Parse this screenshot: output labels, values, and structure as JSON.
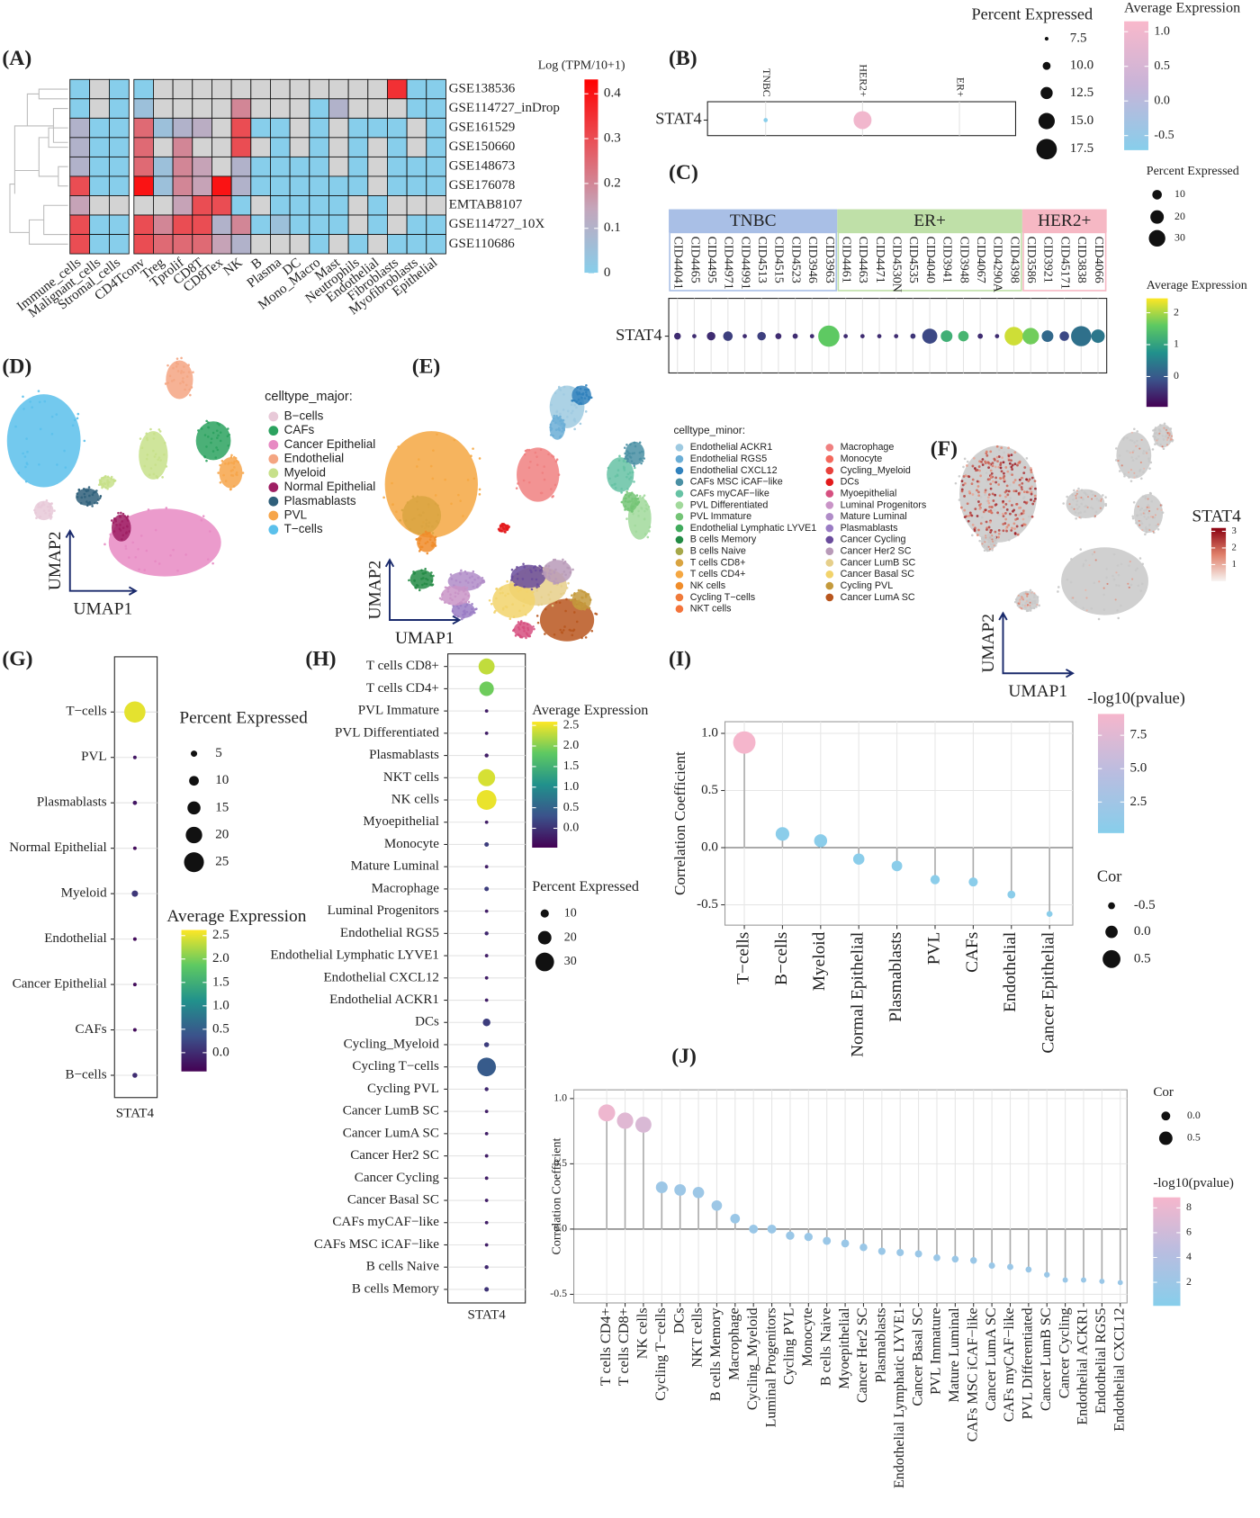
{
  "chart_data": [
    {
      "type": "heatmap",
      "panel": "(A)",
      "rows": [
        "GSE138536",
        "GSE114727_inDrop",
        "GSE161529",
        "GSE150660",
        "GSE148673",
        "GSE176078",
        "EMTAB8107",
        "GSE114727_10X",
        "GSE110686"
      ],
      "columns": [
        "Immune_cells",
        "Malignant_cells",
        "Stromal_cells",
        "CD4Tconv",
        "Treg",
        "Tprolif",
        "CD8T",
        "CD8Tex",
        "NK",
        "B",
        "Plasma",
        "DC",
        "Mono_Macro",
        "Mast",
        "Neutrophils",
        "Endothelial",
        "Fibroblasts",
        "Myofibroblasts",
        "Epithelial"
      ],
      "values": [
        [
          0,
          null,
          0,
          0,
          null,
          null,
          null,
          null,
          null,
          null,
          null,
          null,
          null,
          null,
          null,
          null,
          0.35,
          0,
          0
        ],
        [
          0,
          null,
          0,
          0.05,
          null,
          null,
          null,
          null,
          0.2,
          null,
          null,
          null,
          0,
          0.1,
          null,
          null,
          null,
          0,
          0
        ],
        [
          0.1,
          0,
          0,
          0.25,
          0.05,
          0.1,
          0.12,
          null,
          0.3,
          0,
          0,
          null,
          0,
          null,
          0,
          0,
          0,
          null,
          0
        ],
        [
          0.1,
          0,
          0,
          0.25,
          null,
          0.2,
          null,
          null,
          0.3,
          null,
          0,
          null,
          0,
          null,
          0,
          null,
          0,
          null,
          0
        ],
        [
          0.1,
          0,
          0,
          0.25,
          0.05,
          0.2,
          0.15,
          null,
          0.1,
          0,
          0,
          0,
          0,
          null,
          0,
          null,
          0,
          0,
          0
        ],
        [
          0.3,
          0,
          0,
          0.4,
          0.05,
          0.2,
          0.15,
          0.4,
          0.1,
          0,
          0,
          0,
          0,
          0,
          0,
          null,
          0,
          0,
          0
        ],
        [
          0.15,
          null,
          null,
          null,
          null,
          0.15,
          0.3,
          0.3,
          0,
          null,
          0,
          0,
          0,
          0,
          null,
          0,
          null,
          null,
          null
        ],
        [
          0.3,
          0,
          0,
          0.3,
          0.2,
          0.3,
          0.3,
          0.1,
          0.2,
          0,
          0.05,
          0,
          0,
          0,
          null,
          0,
          null,
          0,
          0
        ],
        [
          0.3,
          0,
          0,
          0.3,
          0.25,
          0.25,
          0.25,
          0.15,
          0.1,
          null,
          null,
          null,
          0,
          null,
          0,
          null,
          0,
          0,
          0
        ]
      ],
      "color_title": "Log (TPM/10+1)",
      "clim": [
        0,
        0.432
      ],
      "cticks": [
        0,
        0.1,
        0.2,
        0.3,
        0.4
      ],
      "colors": [
        "#87ceeb",
        "#c4a6bb",
        "#e8545b",
        "#ff0000"
      ],
      "missing_color": "#d3d3d3"
    },
    {
      "type": "dotplot",
      "panel": "(B)",
      "gene": "STAT4",
      "categories": [
        "TNBC",
        "HER2+",
        "ER+"
      ],
      "percent": [
        7.8,
        16,
        0
      ],
      "average": [
        -0.7,
        1.0,
        null
      ],
      "size_title": "Percent Expressed",
      "size_lim": [
        7,
        18
      ],
      "size_ticks": [
        7.5,
        {
          "value": 10,
          "label": "10.0"
        },
        12.5,
        {
          "value": 15,
          "label": "15.0"
        },
        17.5
      ],
      "color_title": "Average Expression",
      "clim": [
        -0.71,
        1.15
      ],
      "cticks": [
        {
          "value": 1,
          "label": "1.0"
        },
        0.5,
        {
          "value": 0,
          "label": "0.0"
        },
        -0.5
      ],
      "colors": [
        "#87ceeb",
        "#c8b4d8",
        "#f9b8cb"
      ]
    },
    {
      "type": "dotplot",
      "panel": "(C)",
      "gene": "STAT4",
      "groups": [
        {
          "name": "TNBC",
          "color": "#a9bfe6",
          "categories": [
            "CID44041",
            "CID4465",
            "CID4495",
            "CID44971",
            "CID44991",
            "CID4513",
            "CID4515",
            "CID4523",
            "CID3946",
            "CID3963"
          ],
          "percent": [
            5,
            2,
            8,
            10,
            2,
            8,
            4,
            3,
            2,
            50
          ],
          "average": [
            -0.5,
            -0.5,
            -0.5,
            -0.3,
            -0.5,
            -0.3,
            -0.5,
            -0.5,
            -0.5,
            1.6
          ]
        },
        {
          "name": "ER+",
          "color": "#bfe0a8",
          "categories": [
            "CID4461",
            "CID4463",
            "CID4471",
            "CID4530N",
            "CID4535",
            "CID4040",
            "CID3941",
            "CID3948",
            "CID4067",
            "CID4290A",
            "CID4398"
          ],
          "percent": [
            2,
            2,
            2,
            2,
            3,
            25,
            15,
            12,
            3,
            2,
            38
          ],
          "average": [
            -0.5,
            -0.5,
            -0.5,
            -0.5,
            -0.4,
            -0.2,
            1.2,
            1.3,
            -0.5,
            -0.5,
            2.2
          ]
        },
        {
          "name": "HER2+",
          "color": "#f6b8c4",
          "categories": [
            "CID3586",
            "CID3921",
            "CID45171",
            "CID3838",
            "CID4066"
          ],
          "percent": [
            30,
            15,
            10,
            45,
            20
          ],
          "average": [
            1.7,
            0.2,
            -0.2,
            0.3,
            0.4
          ]
        }
      ],
      "size_title": "Percent Expressed",
      "size_lim": [
        0,
        50
      ],
      "size_ticks": [
        10,
        20,
        30
      ],
      "color_title": "Average Expression",
      "clim": [
        -0.95,
        2.45
      ],
      "cticks": [
        2,
        1,
        0
      ],
      "colors": [
        "#440154",
        "#3b528b",
        "#21918c",
        "#5ec962",
        "#fde725"
      ]
    },
    {
      "type": "umap",
      "panel": "(D)",
      "legend_title": "celltype_major:",
      "xlabel": "UMAP1",
      "ylabel": "UMAP2",
      "series": [
        {
          "name": "B−cells",
          "color": "#e8c9d8"
        },
        {
          "name": "CAFs",
          "color": "#2ca25f"
        },
        {
          "name": "Cancer Epithelial",
          "color": "#e78ac3"
        },
        {
          "name": "Endothelial",
          "color": "#f4a582"
        },
        {
          "name": "Myeloid",
          "color": "#c7e08a"
        },
        {
          "name": "Normal Epithelial",
          "color": "#9e1f63"
        },
        {
          "name": "Plasmablasts",
          "color": "#2f5f7a"
        },
        {
          "name": "PVL",
          "color": "#f6a54a"
        },
        {
          "name": "T−cells",
          "color": "#5bc0eb"
        }
      ]
    },
    {
      "type": "umap",
      "panel": "(E)",
      "legend_title": "celltype_minor:",
      "xlabel": "UMAP1",
      "ylabel": "UMAP2",
      "series": [
        {
          "name": "Endothelial ACKR1",
          "color": "#9ecae1"
        },
        {
          "name": "Endothelial RGS5",
          "color": "#6baed6"
        },
        {
          "name": "Endothelial CXCL12",
          "color": "#3182bd"
        },
        {
          "name": "CAFs MSC iCAF−like",
          "color": "#4a90a4"
        },
        {
          "name": "CAFs myCAF−like",
          "color": "#66c2a4"
        },
        {
          "name": "PVL Differentiated",
          "color": "#a1d99b"
        },
        {
          "name": "PVL Immature",
          "color": "#74c476"
        },
        {
          "name": "Endothelial Lymphatic LYVE1",
          "color": "#41ab5d"
        },
        {
          "name": "B cells Memory",
          "color": "#238b45"
        },
        {
          "name": "B cells Naive",
          "color": "#a6a84a"
        },
        {
          "name": "T cells CD8+",
          "color": "#d9a441"
        },
        {
          "name": "T cells CD4+",
          "color": "#f5a742"
        },
        {
          "name": "NK cells",
          "color": "#f08c2a"
        },
        {
          "name": "Cycling T−cells",
          "color": "#f07a3a"
        },
        {
          "name": "NKT cells",
          "color": "#f4743b"
        },
        {
          "name": "Macrophage",
          "color": "#f08080"
        },
        {
          "name": "Monocyte",
          "color": "#f4685c"
        },
        {
          "name": "Cycling_Myeloid",
          "color": "#e8413c"
        },
        {
          "name": "DCs",
          "color": "#e31a1c"
        },
        {
          "name": "Myoepithelial",
          "color": "#d65080"
        },
        {
          "name": "Luminal Progenitors",
          "color": "#c994c7"
        },
        {
          "name": "Mature Luminal",
          "color": "#b08cc8"
        },
        {
          "name": "Plasmablasts",
          "color": "#9a7cc4"
        },
        {
          "name": "Cancer Cycling",
          "color": "#6a4c9c"
        },
        {
          "name": "Cancer Her2 SC",
          "color": "#b89ab8"
        },
        {
          "name": "Cancer LumB SC",
          "color": "#e6cf8a"
        },
        {
          "name": "Cancer Basal SC",
          "color": "#f2d36b"
        },
        {
          "name": "Cycling PVL",
          "color": "#c49a3c"
        },
        {
          "name": "Cancer LumA SC",
          "color": "#b8561e"
        }
      ]
    },
    {
      "type": "umap",
      "panel": "(F)",
      "xlabel": "UMAP1",
      "ylabel": "UMAP2",
      "color_title": "STAT4",
      "clim": [
        0,
        3.2
      ],
      "cticks": [
        1,
        2,
        3
      ],
      "colors": [
        "#f7f4f2",
        "#e0806a",
        "#8b0010"
      ],
      "base_color": "#c8c8c8"
    },
    {
      "type": "dotplot",
      "panel": "(G)",
      "gene": "STAT4",
      "categories": [
        "T−cells",
        "PVL",
        "Plasmablasts",
        "Normal Epithelial",
        "Myeloid",
        "Endothelial",
        "Cancer Epithelial",
        "CAFs",
        "B−cells"
      ],
      "percent": [
        27,
        1,
        2,
        1,
        5,
        1,
        1,
        1,
        3
      ],
      "average": [
        2.5,
        -0.2,
        -0.2,
        -0.3,
        0.1,
        -0.3,
        -0.3,
        -0.3,
        0
      ],
      "size_title": "Percent Expressed",
      "size_lim": [
        0,
        30
      ],
      "size_ticks": [
        5,
        10,
        15,
        20,
        25
      ],
      "color_title": "Average Expression",
      "clim": [
        -0.4,
        2.62
      ],
      "cticks": [
        2.5,
        {
          "value": 2,
          "label": "2.0"
        },
        1.5,
        {
          "value": 1,
          "label": "1.0"
        },
        0.5,
        {
          "value": 0,
          "label": "0.0"
        }
      ],
      "colors": [
        "#440154",
        "#3b528b",
        "#21918c",
        "#5ec962",
        "#fde725"
      ]
    },
    {
      "type": "dotplot",
      "panel": "(H)",
      "gene": "STAT4",
      "categories": [
        "T cells CD8+",
        "T cells CD4+",
        "PVL Immature",
        "PVL Differentiated",
        "Plasmablasts",
        "NKT cells",
        "NK cells",
        "Myoepithelial",
        "Monocyte",
        "Mature Luminal",
        "Macrophage",
        "Luminal Progenitors",
        "Endothelial RGS5",
        "Endothelial Lymphatic LYVE1",
        "Endothelial CXCL12",
        "Endothelial ACKR1",
        "DCs",
        "Cycling_Myeloid",
        "Cycling T−cells",
        "Cycling PVL",
        "Cancer LumB SC",
        "Cancer LumA SC",
        "Cancer Her2 SC",
        "Cancer Cycling",
        "Cancer Basal SC",
        "CAFs myCAF−like",
        "CAFs MSC iCAF−like",
        "B cells Naive",
        "B cells Memory"
      ],
      "percent": [
        25,
        22,
        1,
        1,
        2,
        27,
        32,
        1,
        3,
        1,
        3,
        1,
        2,
        1,
        1,
        1,
        9,
        4,
        30,
        2,
        1,
        1,
        1,
        1,
        1,
        1,
        1,
        2,
        3
      ],
      "average": [
        2.3,
        1.9,
        -0.2,
        -0.2,
        -0.2,
        2.4,
        2.5,
        -0.2,
        0.1,
        -0.2,
        0.1,
        -0.2,
        -0.1,
        -0.2,
        -0.2,
        -0.2,
        0.1,
        0.1,
        0.4,
        -0.1,
        -0.2,
        -0.2,
        -0.2,
        -0.2,
        -0.2,
        -0.2,
        -0.2,
        -0.1,
        0
      ],
      "size_title": "Percent Expressed",
      "size_lim": [
        0,
        35
      ],
      "size_ticks": [
        10,
        20,
        30
      ],
      "color_title": "Average Expression",
      "clim": [
        -0.47,
        2.59
      ],
      "cticks": [
        2.5,
        {
          "value": 2,
          "label": "2.0"
        },
        1.5,
        {
          "value": 1,
          "label": "1.0"
        },
        0.5,
        {
          "value": 0,
          "label": "0.0"
        }
      ],
      "colors": [
        "#440154",
        "#3b528b",
        "#21918c",
        "#5ec962",
        "#fde725"
      ]
    },
    {
      "type": "lollipop",
      "panel": "(I)",
      "ylabel": "Correlation Coefficient",
      "categories": [
        "T−cells",
        "B−cells",
        "Myeloid",
        "Normal Epithelial",
        "Plasmablasts",
        "PVL",
        "CAFs",
        "Endothelial",
        "Cancer Epithelial"
      ],
      "values": [
        0.92,
        0.12,
        0.06,
        -0.1,
        -0.16,
        -0.28,
        -0.3,
        -0.41,
        -0.58
      ],
      "pvalues": [
        9,
        0.5,
        0.5,
        0.5,
        0.5,
        0.5,
        0.5,
        0.5,
        0.5
      ],
      "ylim": [
        -0.678,
        1.102
      ],
      "yticks": [
        {
          "value": 1,
          "label": "1.0"
        },
        0.5,
        {
          "value": 0,
          "label": "0.0"
        },
        -0.5
      ],
      "grid": true,
      "color_title": "-log10(pvalue)",
      "clim": [
        0.17,
        9.1
      ],
      "cticks": [
        7.5,
        {
          "value": 5,
          "label": "5.0"
        },
        2.5
      ],
      "colors": [
        "#87ceeb",
        "#b9bde0",
        "#f6b6cc"
      ],
      "size_title": "Cor",
      "size_lim": [
        -0.6,
        1
      ],
      "size_ticks": [
        -0.5,
        {
          "value": 0,
          "label": "0.0"
        },
        0.5
      ]
    },
    {
      "type": "lollipop",
      "panel": "(J)",
      "ylabel": "Correlation Coefficient",
      "categories": [
        "T cells CD4+",
        "T cells CD8+",
        "NK cells",
        "Cycling T−cells",
        "DCs",
        "NKT cells",
        "B cells Memory",
        "Macrophage",
        "Cycling_Myeloid",
        "Luminal Progenitors",
        "Cycling PVL",
        "Monocyte",
        "B cells Naive",
        "Myoepithelial",
        "Cancer Her2 SC",
        "Plasmablasts",
        "Endothelial Lymphatic LYVE1",
        "Cancer Basal SC",
        "PVL Immature",
        "Mature Luminal",
        "CAFs MSC iCAF−like",
        "Cancer LumA SC",
        "CAFs myCAF−like",
        "PVL Differentiated",
        "Cancer LumB SC",
        "Cancer Cycling",
        "Endothelial ACKR1",
        "Endothelial RGS5",
        "Endothelial CXCL12"
      ],
      "values": [
        0.89,
        0.83,
        0.8,
        0.32,
        0.3,
        0.28,
        0.18,
        0.08,
        0,
        0,
        -0.05,
        -0.06,
        -0.09,
        -0.11,
        -0.14,
        -0.17,
        -0.18,
        -0.19,
        -0.22,
        -0.23,
        -0.24,
        -0.28,
        -0.29,
        -0.31,
        -0.35,
        -0.39,
        -0.39,
        -0.4,
        -0.41
      ],
      "pvalues": [
        8.3,
        7.3,
        6.8,
        2,
        2,
        2,
        2,
        1.8,
        1.8,
        1.8,
        1.8,
        1.8,
        1.8,
        1.8,
        1.8,
        1.8,
        1.8,
        1.8,
        1.8,
        1.8,
        1.8,
        1.8,
        1.8,
        1.8,
        1.8,
        1.8,
        1.8,
        1.8,
        1.8
      ],
      "ylim": [
        -0.566,
        1.067
      ],
      "yticks": [
        {
          "value": 1,
          "label": "1.0"
        },
        0.5,
        {
          "value": 0,
          "label": "0.0"
        },
        -0.5
      ],
      "grid": true,
      "color_title": "-log10(pvalue)",
      "clim": [
        0.1,
        8.85
      ],
      "cticks": [
        8,
        6,
        4,
        2
      ],
      "colors": [
        "#87ceeb",
        "#b9bde0",
        "#f6b6cc"
      ],
      "size_title": "Cor",
      "size_lim": [
        -0.45,
        0.95
      ],
      "size_ticks": [
        {
          "value": 0,
          "label": "0.0"
        },
        0.5
      ]
    }
  ]
}
